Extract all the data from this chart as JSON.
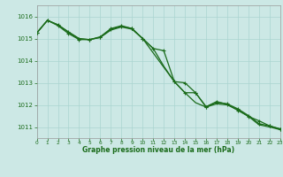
{
  "title": "Graphe pression niveau de la mer (hPa)",
  "bg_color": "#cce8e5",
  "line_color": "#1a6b1a",
  "grid_color": "#aad4d0",
  "xlim": [
    0,
    23
  ],
  "ylim": [
    1010.5,
    1016.5
  ],
  "yticks": [
    1011,
    1012,
    1013,
    1014,
    1015,
    1016
  ],
  "xticks": [
    0,
    1,
    2,
    3,
    4,
    5,
    6,
    7,
    8,
    9,
    10,
    11,
    12,
    13,
    14,
    15,
    16,
    17,
    18,
    19,
    20,
    21,
    22,
    23
  ],
  "series": [
    {
      "x": [
        0,
        1,
        2,
        3,
        4,
        5,
        6,
        7,
        8,
        9,
        10,
        11,
        12,
        13,
        14,
        15,
        16,
        17,
        18,
        19,
        20,
        21,
        22,
        23
      ],
      "y": [
        1015.25,
        1015.82,
        1015.62,
        1015.3,
        1015.0,
        1014.95,
        1015.05,
        1015.42,
        1015.55,
        1015.45,
        1015.0,
        1014.55,
        1014.45,
        1013.05,
        1013.0,
        1012.55,
        1011.9,
        1012.12,
        1012.05,
        1011.82,
        1011.52,
        1011.15,
        1011.05,
        1010.92
      ],
      "marker": true,
      "lw": 0.9
    },
    {
      "x": [
        0,
        1,
        2,
        3,
        4,
        5,
        6,
        7,
        8,
        9,
        10,
        11,
        12,
        13,
        14,
        15,
        16,
        17,
        18,
        19,
        20,
        21,
        22,
        23
      ],
      "y": [
        1015.25,
        1015.82,
        1015.62,
        1015.28,
        1014.98,
        1014.95,
        1015.05,
        1015.38,
        1015.52,
        1015.42,
        1015.0,
        1014.55,
        1013.75,
        1013.05,
        1012.55,
        1012.1,
        1011.9,
        1012.05,
        1012.0,
        1011.78,
        1011.48,
        1011.1,
        1011.0,
        1010.88
      ],
      "marker": false,
      "lw": 0.9
    },
    {
      "x": [
        0,
        1,
        2,
        3,
        4,
        5,
        6,
        7,
        8,
        9,
        10,
        13,
        14,
        15,
        16,
        17,
        18,
        19,
        20,
        21,
        22,
        23
      ],
      "y": [
        1015.25,
        1015.82,
        1015.58,
        1015.22,
        1014.95,
        1014.95,
        1015.08,
        1015.45,
        1015.58,
        1015.45,
        1015.0,
        1013.05,
        1012.55,
        1012.55,
        1011.92,
        1012.15,
        1012.02,
        1011.75,
        1011.48,
        1011.28,
        1011.05,
        1010.9
      ],
      "marker": true,
      "lw": 0.9
    }
  ]
}
